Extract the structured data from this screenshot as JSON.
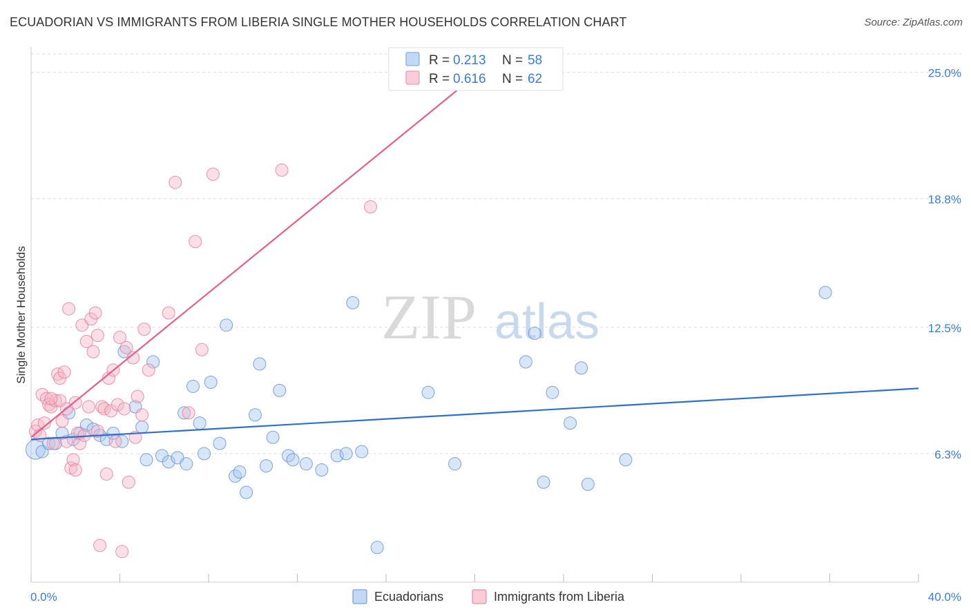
{
  "title": "ECUADORIAN VS IMMIGRANTS FROM LIBERIA SINGLE MOTHER HOUSEHOLDS CORRELATION CHART",
  "source": "Source: ZipAtlas.com",
  "watermark": {
    "part1": "ZIP",
    "part2": "atlas"
  },
  "chart_data": {
    "type": "scatter",
    "ylabel": "Single Mother Households",
    "xlim": [
      0,
      40
    ],
    "ylim": [
      0,
      25.9
    ],
    "y_ticks": [
      {
        "value": 6.3,
        "label": "6.3%"
      },
      {
        "value": 12.5,
        "label": "12.5%"
      },
      {
        "value": 18.8,
        "label": "18.8%"
      },
      {
        "value": 25.0,
        "label": "25.0%"
      }
    ],
    "x_tick_labels": {
      "left": "0.0%",
      "right": "40.0%"
    },
    "x_minor_ticks": [
      0,
      4,
      8,
      12,
      16,
      20,
      24,
      28,
      32,
      36,
      40
    ],
    "grid": true,
    "legend_stats": [
      {
        "r_label": "R =",
        "r_value": "0.213",
        "n_label": "N =",
        "n_value": "58",
        "color": "#a8c8f0",
        "stroke": "#6a9fd8"
      },
      {
        "r_label": "R =",
        "r_value": "0.616",
        "n_label": "N =",
        "n_value": "62",
        "color": "#f7b6c8",
        "stroke": "#e88aa5"
      }
    ],
    "series": [
      {
        "name": "Ecuadorians",
        "color": "#a8c8f0",
        "stroke": "#5b8fd0",
        "line_color": "#2f6fcc",
        "trend": {
          "x1": 0,
          "y1": 7.0,
          "x2": 40,
          "y2": 9.5
        },
        "points": [
          [
            0.2,
            6.5
          ],
          [
            0.5,
            6.4
          ],
          [
            0.8,
            6.8
          ],
          [
            1.1,
            6.8
          ],
          [
            1.4,
            7.3
          ],
          [
            1.7,
            8.3
          ],
          [
            1.9,
            7.0
          ],
          [
            2.2,
            7.3
          ],
          [
            2.5,
            7.7
          ],
          [
            2.8,
            7.5
          ],
          [
            3.1,
            7.2
          ],
          [
            3.4,
            7.0
          ],
          [
            3.7,
            7.3
          ],
          [
            4.1,
            6.9
          ],
          [
            4.2,
            11.3
          ],
          [
            4.7,
            8.6
          ],
          [
            5.0,
            7.6
          ],
          [
            5.2,
            6.0
          ],
          [
            5.5,
            10.8
          ],
          [
            5.9,
            6.2
          ],
          [
            6.2,
            5.9
          ],
          [
            6.6,
            6.1
          ],
          [
            6.9,
            8.3
          ],
          [
            7.0,
            5.8
          ],
          [
            7.3,
            9.6
          ],
          [
            7.6,
            7.8
          ],
          [
            7.8,
            6.3
          ],
          [
            8.1,
            9.8
          ],
          [
            8.5,
            6.8
          ],
          [
            8.8,
            12.6
          ],
          [
            9.2,
            5.2
          ],
          [
            9.4,
            5.4
          ],
          [
            9.7,
            4.4
          ],
          [
            10.1,
            8.2
          ],
          [
            10.3,
            10.7
          ],
          [
            10.6,
            5.7
          ],
          [
            10.9,
            7.1
          ],
          [
            11.2,
            9.4
          ],
          [
            11.6,
            6.2
          ],
          [
            11.8,
            6.0
          ],
          [
            12.4,
            5.8
          ],
          [
            13.1,
            5.5
          ],
          [
            13.8,
            6.2
          ],
          [
            14.2,
            6.3
          ],
          [
            14.5,
            13.7
          ],
          [
            14.9,
            6.4
          ],
          [
            15.6,
            1.7
          ],
          [
            17.9,
            9.3
          ],
          [
            19.1,
            5.8
          ],
          [
            22.3,
            10.8
          ],
          [
            22.7,
            12.2
          ],
          [
            23.1,
            4.9
          ],
          [
            23.5,
            9.3
          ],
          [
            24.3,
            7.8
          ],
          [
            24.8,
            10.5
          ],
          [
            25.1,
            4.8
          ],
          [
            26.8,
            6.0
          ],
          [
            35.8,
            14.2
          ]
        ]
      },
      {
        "name": "Immigrants from Liberia",
        "color": "#f7b6c8",
        "stroke": "#e07a99",
        "line_color": "#e0608a",
        "trend": {
          "x1": 0,
          "y1": 7.1,
          "x2": 20.2,
          "y2": 25.0
        },
        "points": [
          [
            0.2,
            7.4
          ],
          [
            0.3,
            7.7
          ],
          [
            0.4,
            7.2
          ],
          [
            0.5,
            9.2
          ],
          [
            0.6,
            7.8
          ],
          [
            0.7,
            9.0
          ],
          [
            0.8,
            8.7
          ],
          [
            0.9,
            8.6
          ],
          [
            1.0,
            6.8
          ],
          [
            1.1,
            8.9
          ],
          [
            1.2,
            10.2
          ],
          [
            1.3,
            10.0
          ],
          [
            1.4,
            7.9
          ],
          [
            1.5,
            10.3
          ],
          [
            1.6,
            6.9
          ],
          [
            1.7,
            13.4
          ],
          [
            1.8,
            5.6
          ],
          [
            1.9,
            6.0
          ],
          [
            2.0,
            5.5
          ],
          [
            2.1,
            7.3
          ],
          [
            2.2,
            6.8
          ],
          [
            2.3,
            12.6
          ],
          [
            2.4,
            7.2
          ],
          [
            2.5,
            11.8
          ],
          [
            2.6,
            8.6
          ],
          [
            2.7,
            12.9
          ],
          [
            2.8,
            11.3
          ],
          [
            2.9,
            13.2
          ],
          [
            3.0,
            12.1
          ],
          [
            3.1,
            1.8
          ],
          [
            3.2,
            8.6
          ],
          [
            3.3,
            8.5
          ],
          [
            3.4,
            5.3
          ],
          [
            3.5,
            10.0
          ],
          [
            3.6,
            8.4
          ],
          [
            3.7,
            10.4
          ],
          [
            3.8,
            6.9
          ],
          [
            3.9,
            8.7
          ],
          [
            4.0,
            12.0
          ],
          [
            4.1,
            1.5
          ],
          [
            4.2,
            8.5
          ],
          [
            4.3,
            11.5
          ],
          [
            4.4,
            4.9
          ],
          [
            4.6,
            11.0
          ],
          [
            4.7,
            7.1
          ],
          [
            4.8,
            9.1
          ],
          [
            5.0,
            8.2
          ],
          [
            5.1,
            12.4
          ],
          [
            5.3,
            10.4
          ],
          [
            6.2,
            13.2
          ],
          [
            6.5,
            19.6
          ],
          [
            7.1,
            8.3
          ],
          [
            7.4,
            16.7
          ],
          [
            7.7,
            11.4
          ],
          [
            8.2,
            20.0
          ],
          [
            11.3,
            20.2
          ],
          [
            15.3,
            18.4
          ],
          [
            1.3,
            8.9
          ],
          [
            2.0,
            8.8
          ],
          [
            1.6,
            8.5
          ],
          [
            3.0,
            7.4
          ],
          [
            0.9,
            9.0
          ]
        ]
      }
    ]
  },
  "bottom_legend": [
    {
      "label": "Ecuadorians",
      "color": "#a8c8f0",
      "stroke": "#5b8fd0"
    },
    {
      "label": "Immigrants from Liberia",
      "color": "#f7b6c8",
      "stroke": "#e07a99"
    }
  ]
}
